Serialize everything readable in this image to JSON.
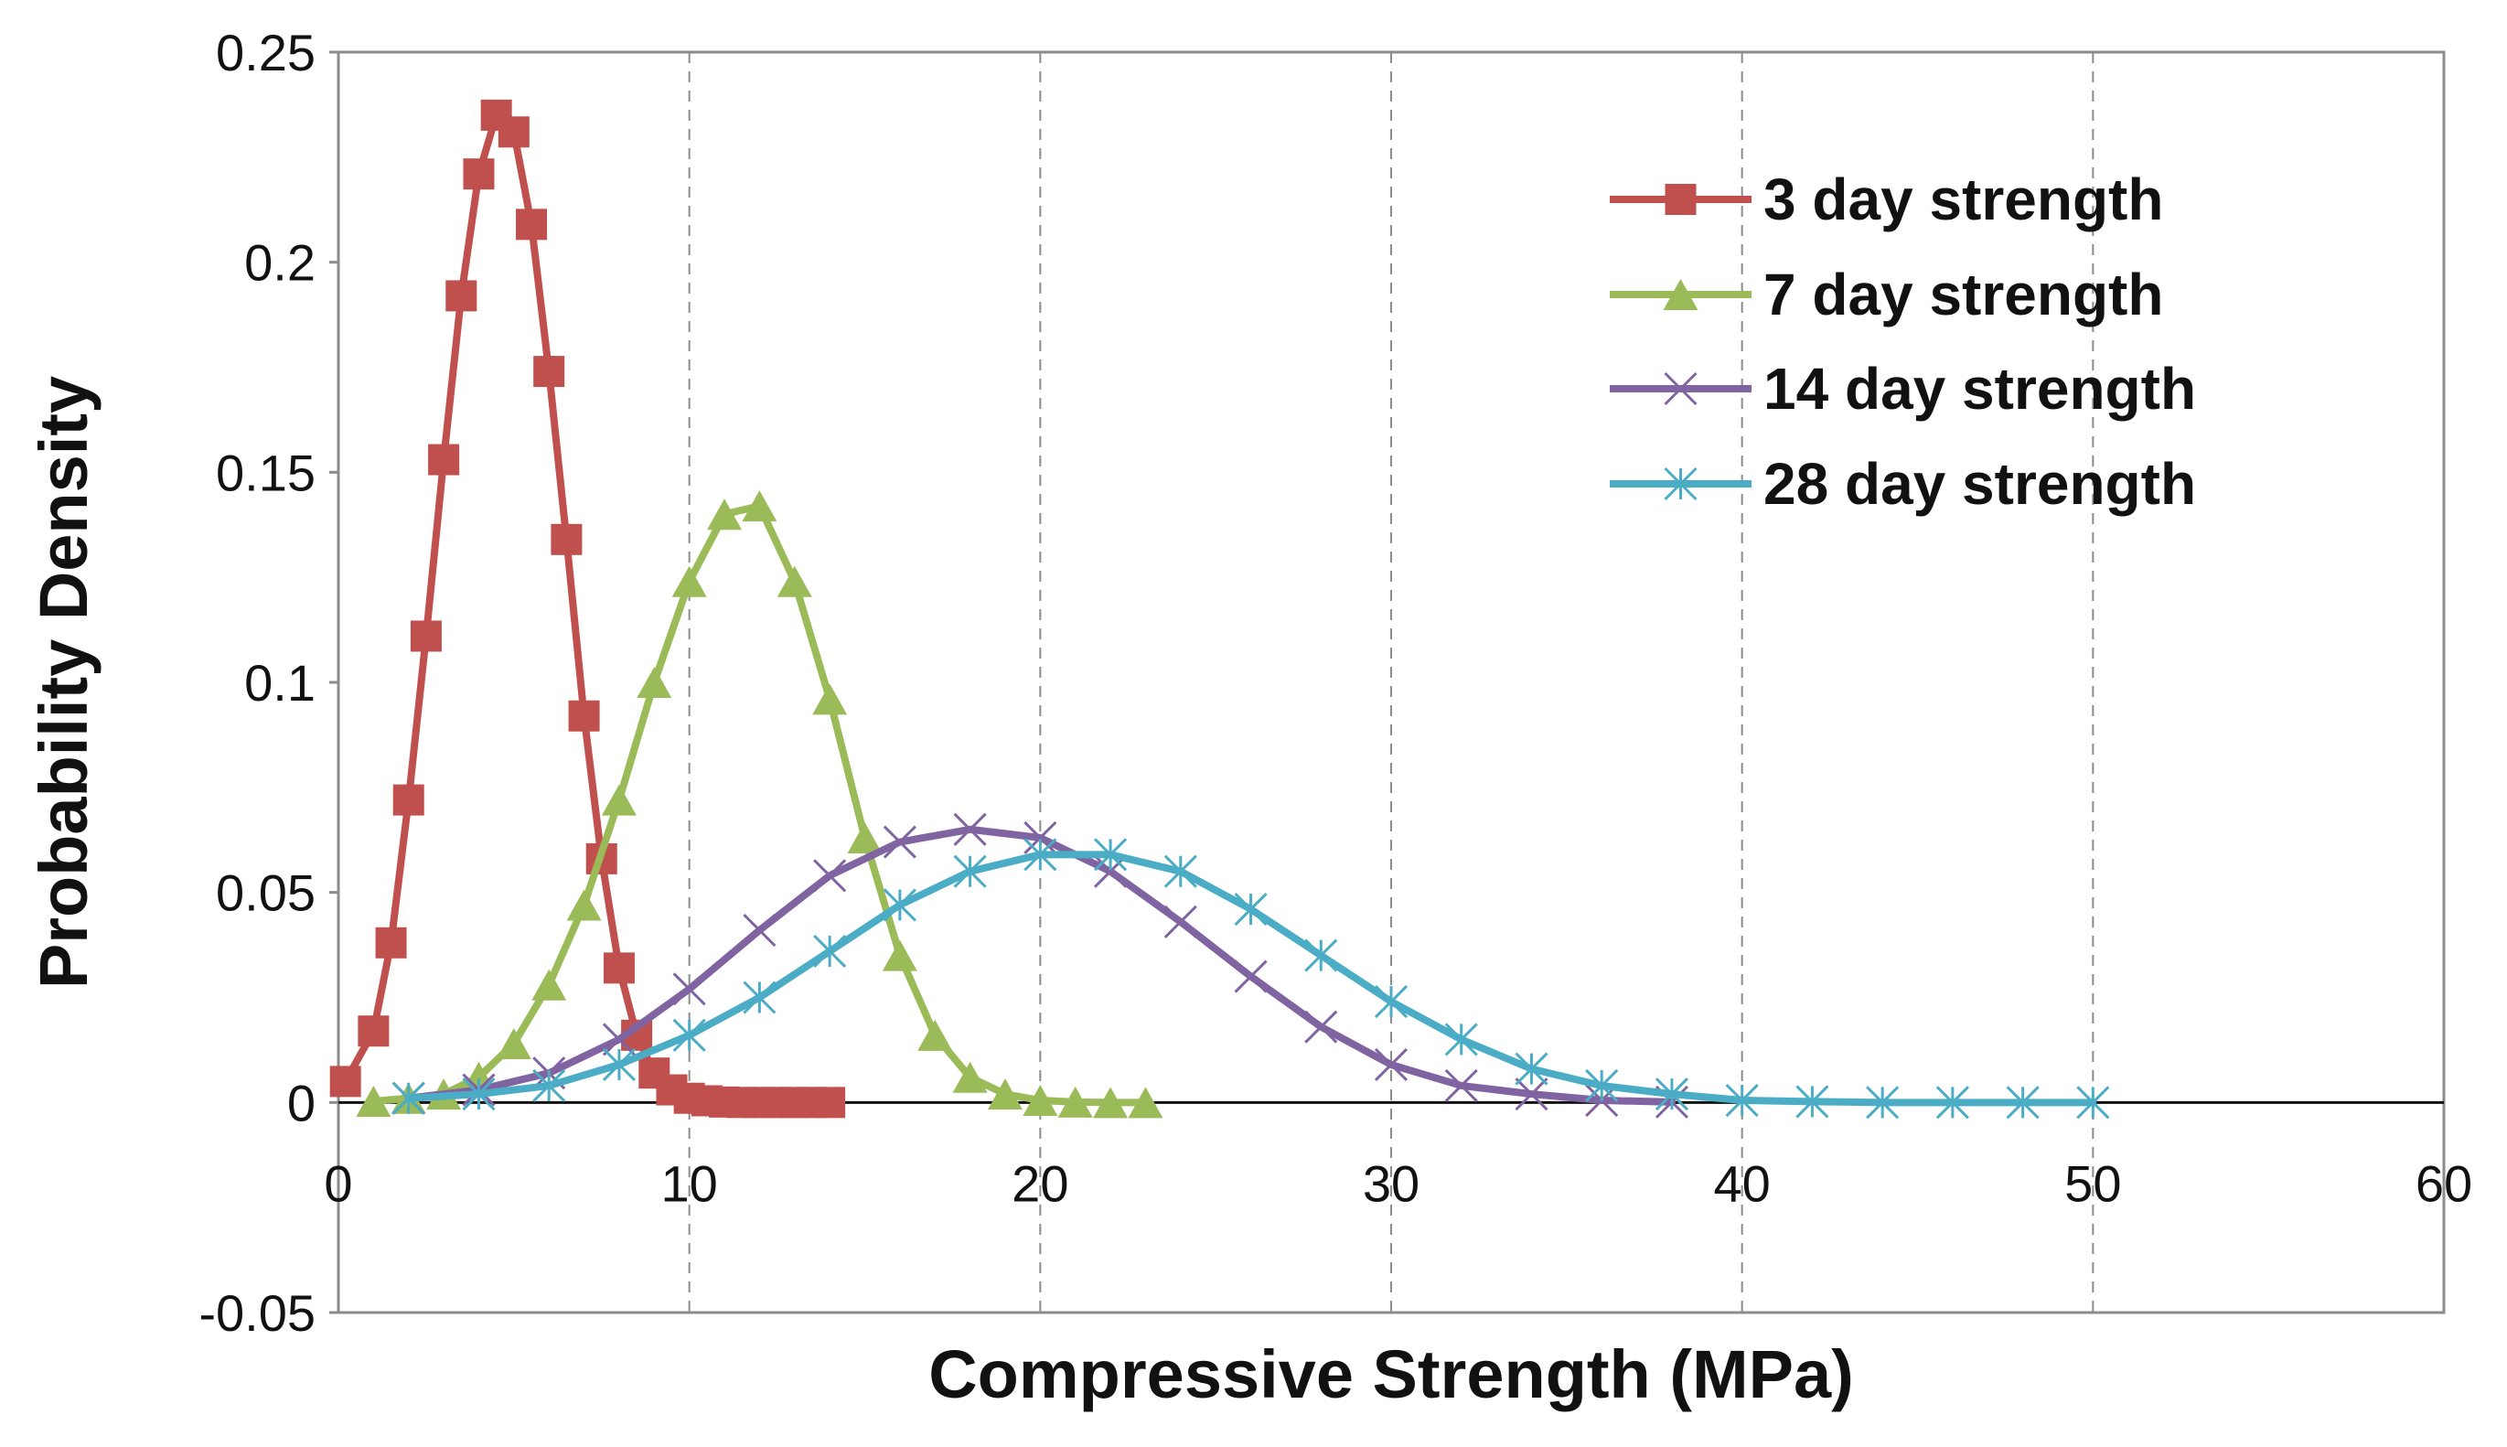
{
  "chart_data": {
    "type": "line",
    "title": "",
    "xlabel": "Compressive Strength (MPa)",
    "ylabel": "Probability Density",
    "xlim": [
      0,
      60
    ],
    "ylim": [
      -0.05,
      0.25
    ],
    "x_ticks": [
      0,
      10,
      20,
      30,
      40,
      50,
      60
    ],
    "x_tick_labels": [
      "0",
      "10",
      "20",
      "30",
      "40",
      "50",
      "60"
    ],
    "y_ticks": [
      0.25,
      0.2,
      0.15,
      0.1,
      0.05,
      0,
      -0.05
    ],
    "y_tick_labels": [
      "0.25",
      "0.2",
      "0.15",
      "0.1",
      "0.05",
      "0",
      "-0.05"
    ],
    "grid": "vertical dashed",
    "legend_position": "top-right",
    "series": [
      {
        "name": "3 day strength",
        "color": "#c0504d",
        "marker": "square",
        "x": [
          0.2,
          1.0,
          1.5,
          2.0,
          2.5,
          3.0,
          3.5,
          4.0,
          4.5,
          5.0,
          5.5,
          6.0,
          6.5,
          7.0,
          7.5,
          8.0,
          8.5,
          9.0,
          9.5,
          10.0,
          10.5,
          11.0,
          11.5,
          12.0,
          12.5,
          13.0,
          13.5,
          14.0
        ],
        "y": [
          0.005,
          0.017,
          0.038,
          0.072,
          0.111,
          0.153,
          0.192,
          0.221,
          0.235,
          0.231,
          0.209,
          0.174,
          0.134,
          0.092,
          0.058,
          0.032,
          0.016,
          0.007,
          0.003,
          0.001,
          0.0004,
          0.0001,
          0,
          0,
          0,
          0,
          0,
          0
        ]
      },
      {
        "name": "7 day strength",
        "color": "#9bbb59",
        "marker": "triangle",
        "x": [
          1,
          2,
          3,
          4,
          5,
          6,
          7,
          8,
          9,
          10,
          11,
          12,
          13,
          14,
          15,
          16,
          17,
          18,
          19,
          20,
          21,
          22,
          23
        ],
        "y": [
          0.0003,
          0.001,
          0.002,
          0.006,
          0.014,
          0.028,
          0.047,
          0.072,
          0.1,
          0.124,
          0.14,
          0.142,
          0.124,
          0.096,
          0.063,
          0.035,
          0.016,
          0.006,
          0.002,
          0.0005,
          0.0001,
          0,
          0
        ]
      },
      {
        "name": "14 day strength",
        "color": "#8064a2",
        "marker": "x",
        "x": [
          2,
          4,
          6,
          8,
          10,
          12,
          14,
          16,
          18,
          20,
          22,
          24,
          26,
          28,
          30,
          32,
          34,
          36,
          38
        ],
        "y": [
          0.001,
          0.003,
          0.007,
          0.015,
          0.027,
          0.041,
          0.054,
          0.062,
          0.065,
          0.063,
          0.055,
          0.043,
          0.03,
          0.018,
          0.009,
          0.004,
          0.002,
          0.0005,
          0.0001
        ]
      },
      {
        "name": "28 day strength",
        "color": "#4bacc6",
        "marker": "asterisk",
        "x": [
          2,
          4,
          6,
          8,
          10,
          12,
          14,
          16,
          18,
          20,
          22,
          24,
          26,
          28,
          30,
          32,
          34,
          36,
          38,
          40,
          42,
          44,
          46,
          48,
          50
        ],
        "y": [
          0.001,
          0.002,
          0.004,
          0.009,
          0.016,
          0.025,
          0.036,
          0.047,
          0.055,
          0.059,
          0.059,
          0.055,
          0.046,
          0.035,
          0.024,
          0.015,
          0.008,
          0.004,
          0.002,
          0.0005,
          0.0002,
          0,
          0,
          0,
          0
        ]
      }
    ]
  }
}
